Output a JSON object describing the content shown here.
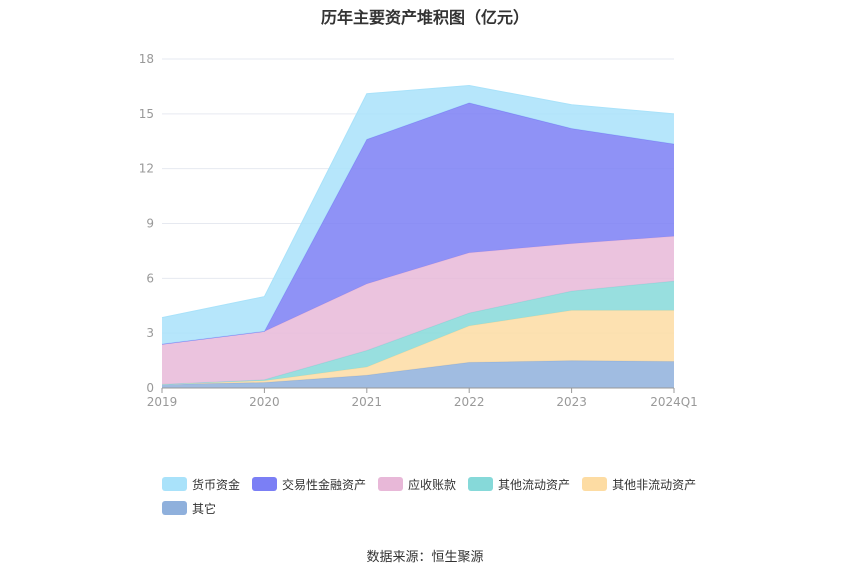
{
  "chart_data": {
    "type": "area",
    "stacked": true,
    "title": "历年主要资产堆积图（亿元）",
    "categories": [
      "2019",
      "2020",
      "2021",
      "2022",
      "2023",
      "2024Q1"
    ],
    "y_ticks": [
      "0",
      "3",
      "6",
      "9",
      "12",
      "15",
      "18"
    ],
    "ylim": [
      0,
      18
    ],
    "grid": true,
    "legend_position": "bottom",
    "series": [
      {
        "name": "其它",
        "color": "#8fb0dc",
        "values": [
          0.2,
          0.3,
          0.7,
          1.4,
          1.5,
          1.45
        ]
      },
      {
        "name": "其他非流动资产",
        "color": "#fddca3",
        "values": [
          0.0,
          0.1,
          0.45,
          2.0,
          2.75,
          2.8
        ]
      },
      {
        "name": "其他流动资产",
        "color": "#86d9d9",
        "values": [
          0.0,
          0.05,
          0.9,
          0.7,
          1.05,
          1.6
        ]
      },
      {
        "name": "应收账款",
        "color": "#e8b8d8",
        "values": [
          2.2,
          2.65,
          3.65,
          3.3,
          2.6,
          2.45
        ]
      },
      {
        "name": "交易性金融资产",
        "color": "#7b7ff5",
        "values": [
          0.0,
          0.0,
          7.9,
          8.2,
          6.3,
          5.05
        ]
      },
      {
        "name": "货币资金",
        "color": "#a9e2fa",
        "values": [
          1.45,
          1.9,
          2.5,
          0.95,
          1.3,
          1.65
        ]
      }
    ],
    "legend_order": [
      "货币资金",
      "交易性金融资产",
      "应收账款",
      "其他流动资产",
      "其他非流动资产",
      "其它"
    ]
  },
  "source": "数据来源：恒生聚源"
}
